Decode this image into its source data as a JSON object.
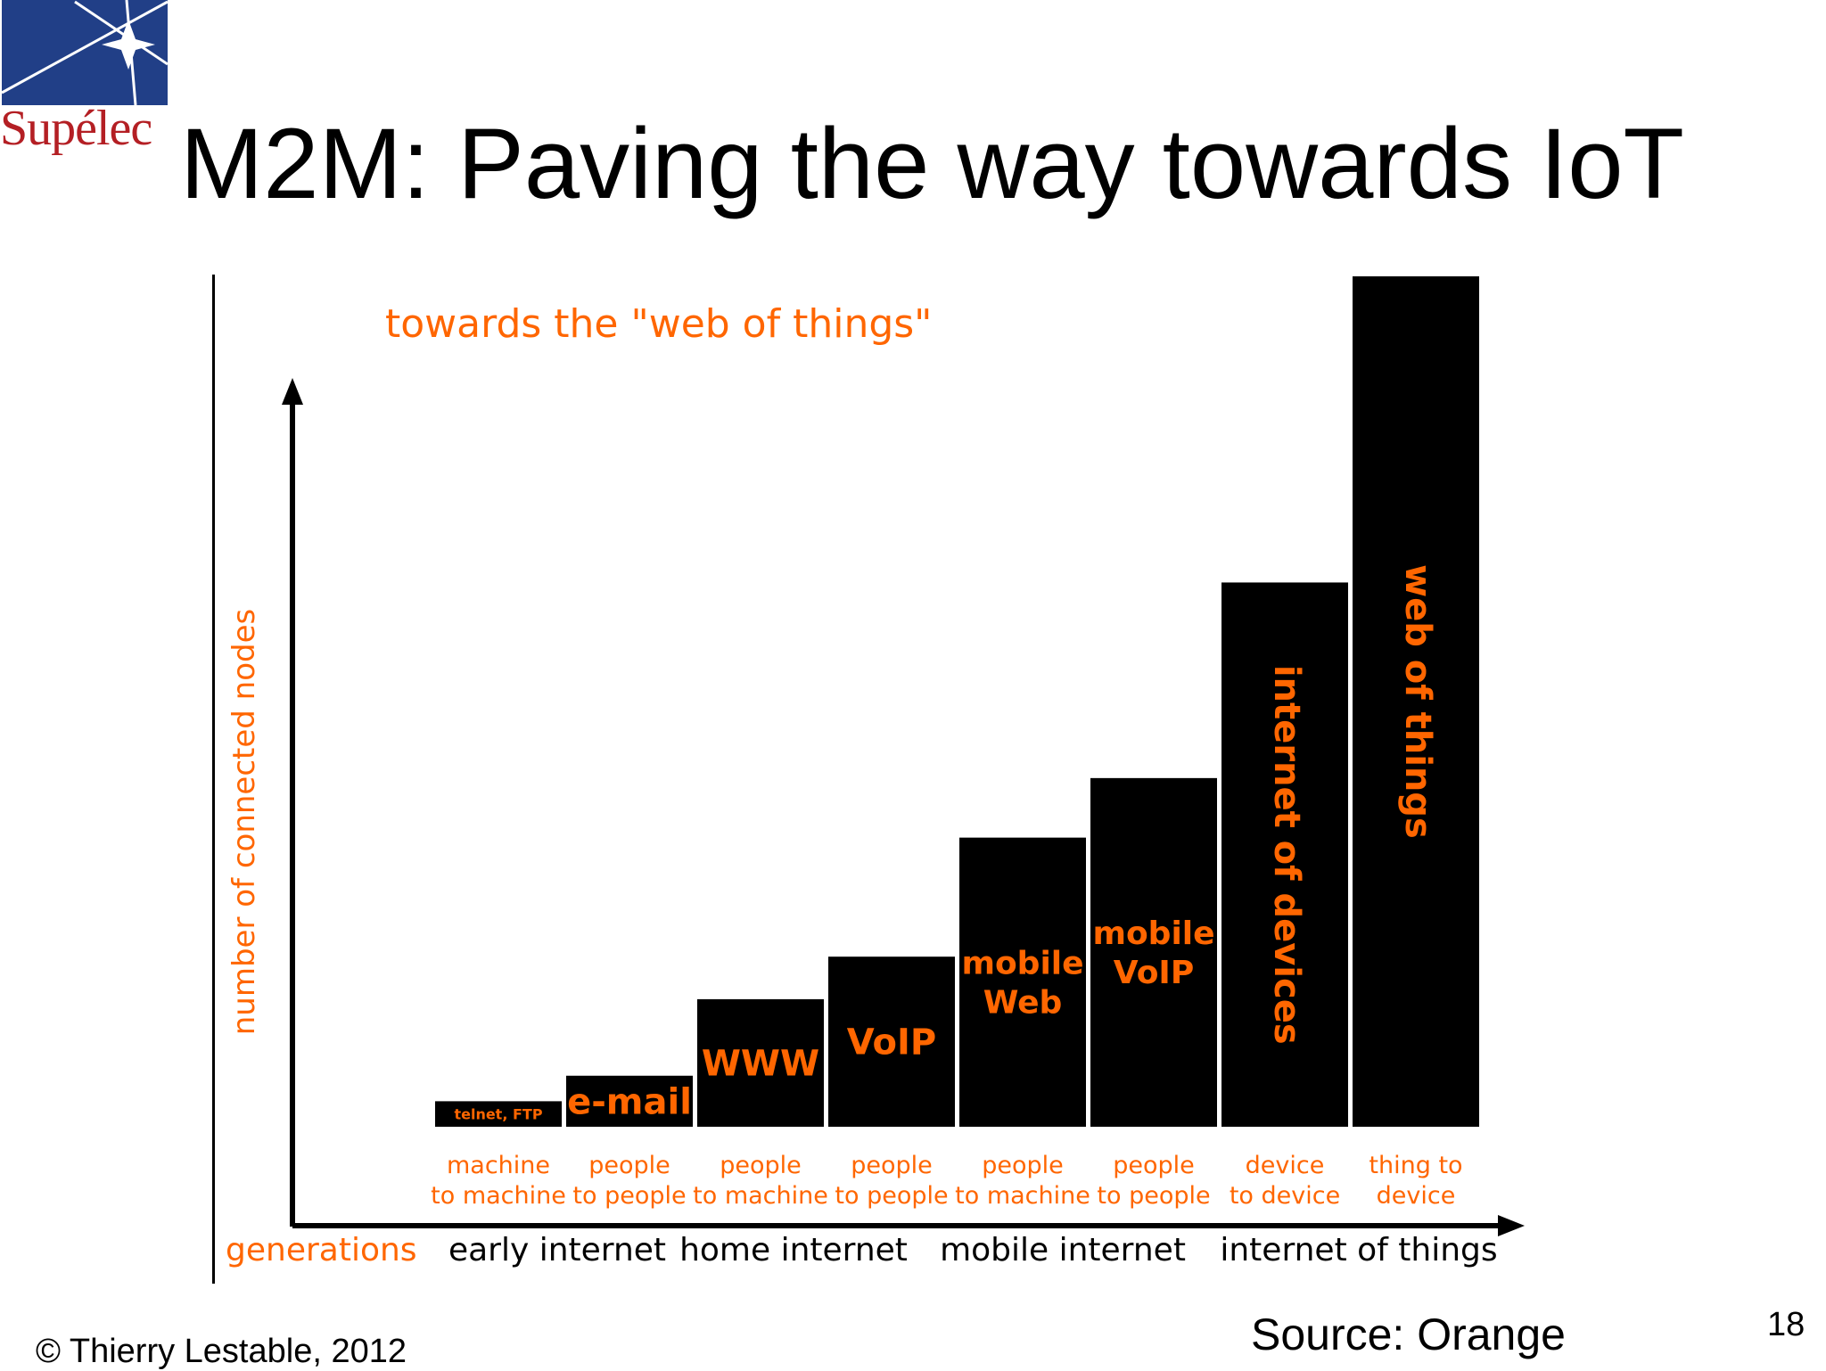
{
  "slide": {
    "title": "M2M: Paving the way towards IoT",
    "logo_text": "Supélec",
    "copyright": "© Thierry Lestable, 2012",
    "source": "Source: Orange",
    "page_number": "18"
  },
  "colors": {
    "bar": "#000000",
    "label": "#ff6600",
    "logo_blue": "#213f87",
    "logo_red": "#b41f24"
  },
  "chart_data": {
    "type": "bar",
    "title": "towards the \"web of things\"",
    "ylabel": "number of connected nodes",
    "xlabel": "generations",
    "y_ticks": false,
    "ylim": [
      0,
      100
    ],
    "categories": [
      [
        "machine",
        "to machine"
      ],
      [
        "people",
        "to people"
      ],
      [
        "people",
        "to machine"
      ],
      [
        "people",
        "to people"
      ],
      [
        "people",
        "to machine"
      ],
      [
        "people",
        "to people"
      ],
      [
        "device",
        "to device"
      ],
      [
        "thing to",
        "device"
      ]
    ],
    "values": [
      3,
      6,
      15,
      20,
      34,
      41,
      64,
      100
    ],
    "bar_labels": [
      [
        "telnet, FTP"
      ],
      [
        "e-mail"
      ],
      [
        "WWW"
      ],
      [
        "VoIP"
      ],
      [
        "mobile",
        "Web"
      ],
      [
        "mobile",
        "VoIP"
      ],
      [
        "internet of devices"
      ],
      [
        "web of things"
      ]
    ],
    "vertical_bar_labels": [
      false,
      false,
      false,
      false,
      false,
      false,
      true,
      true
    ],
    "generations": [
      "early internet",
      "home internet",
      "mobile  internet",
      "internet of things"
    ]
  }
}
